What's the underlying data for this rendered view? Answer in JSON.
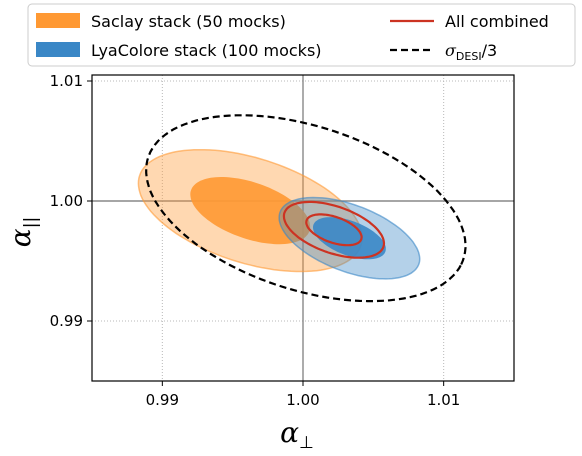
{
  "chart_data": {
    "type": "contour",
    "xlabel": "α",
    "xlabel_sub": "⊥",
    "ylabel": "α",
    "ylabel_sub": "||",
    "xlim": [
      0.985,
      1.015
    ],
    "ylim": [
      0.985,
      1.0105
    ],
    "xticks": [
      0.99,
      1.0,
      1.01
    ],
    "xtick_labels": [
      "0.99",
      "1.00",
      "1.01"
    ],
    "yticks": [
      0.99,
      1.0,
      1.01
    ],
    "ytick_labels": [
      "0.99",
      "1.00",
      "1.01"
    ],
    "grid": true,
    "grid_style": "dotted",
    "reference": {
      "x": 1.0,
      "y": 1.0
    },
    "legend_position": "top-center",
    "series": [
      {
        "name": "Saclay stack (50 mocks)",
        "kind": "filled-contours",
        "color": "#ff9933",
        "center": [
          0.99625,
          0.9992
        ],
        "inner": {
          "semi_major": 0.00455,
          "semi_minor": 0.0023,
          "angle_deg": -24
        },
        "outer": {
          "semi_major": 0.0084,
          "semi_minor": 0.0043,
          "angle_deg": -22
        }
      },
      {
        "name": "LyaColore stack (100 mocks)",
        "kind": "filled-contours",
        "color": "#3a87c6",
        "center": [
          1.0033,
          0.9969
        ],
        "inner": {
          "semi_major": 0.0028,
          "semi_minor": 0.0014,
          "angle_deg": -26
        },
        "outer": {
          "semi_major": 0.0054,
          "semi_minor": 0.0027,
          "angle_deg": -26
        }
      },
      {
        "name": "All combined",
        "kind": "line-contours",
        "color": "#cc3322",
        "center": [
          1.0022,
          0.9976
        ],
        "inner": {
          "semi_major": 0.0021,
          "semi_minor": 0.00105,
          "angle_deg": -24
        },
        "outer": {
          "semi_major": 0.0038,
          "semi_minor": 0.0019,
          "angle_deg": -24
        }
      },
      {
        "name": "σ_DESI/3",
        "kind": "dashed-ellipse",
        "color": "#000000",
        "center": [
          1.0002,
          0.9994
        ],
        "ellipse": {
          "semi_major": 0.012,
          "semi_minor": 0.0067,
          "angle_deg": -23
        }
      }
    ],
    "legend": {
      "items": [
        {
          "label": "Saclay stack (50 mocks)",
          "marker": "patch",
          "color": "#ff9933"
        },
        {
          "label": "LyaColore stack (100 mocks)",
          "marker": "patch",
          "color": "#3a87c6"
        },
        {
          "label": "All combined",
          "marker": "line",
          "color": "#cc3322"
        },
        {
          "label_main": "σ",
          "label_sub": "DESI",
          "label_tail": "/3",
          "marker": "dashed-line",
          "color": "#000000"
        }
      ]
    }
  }
}
